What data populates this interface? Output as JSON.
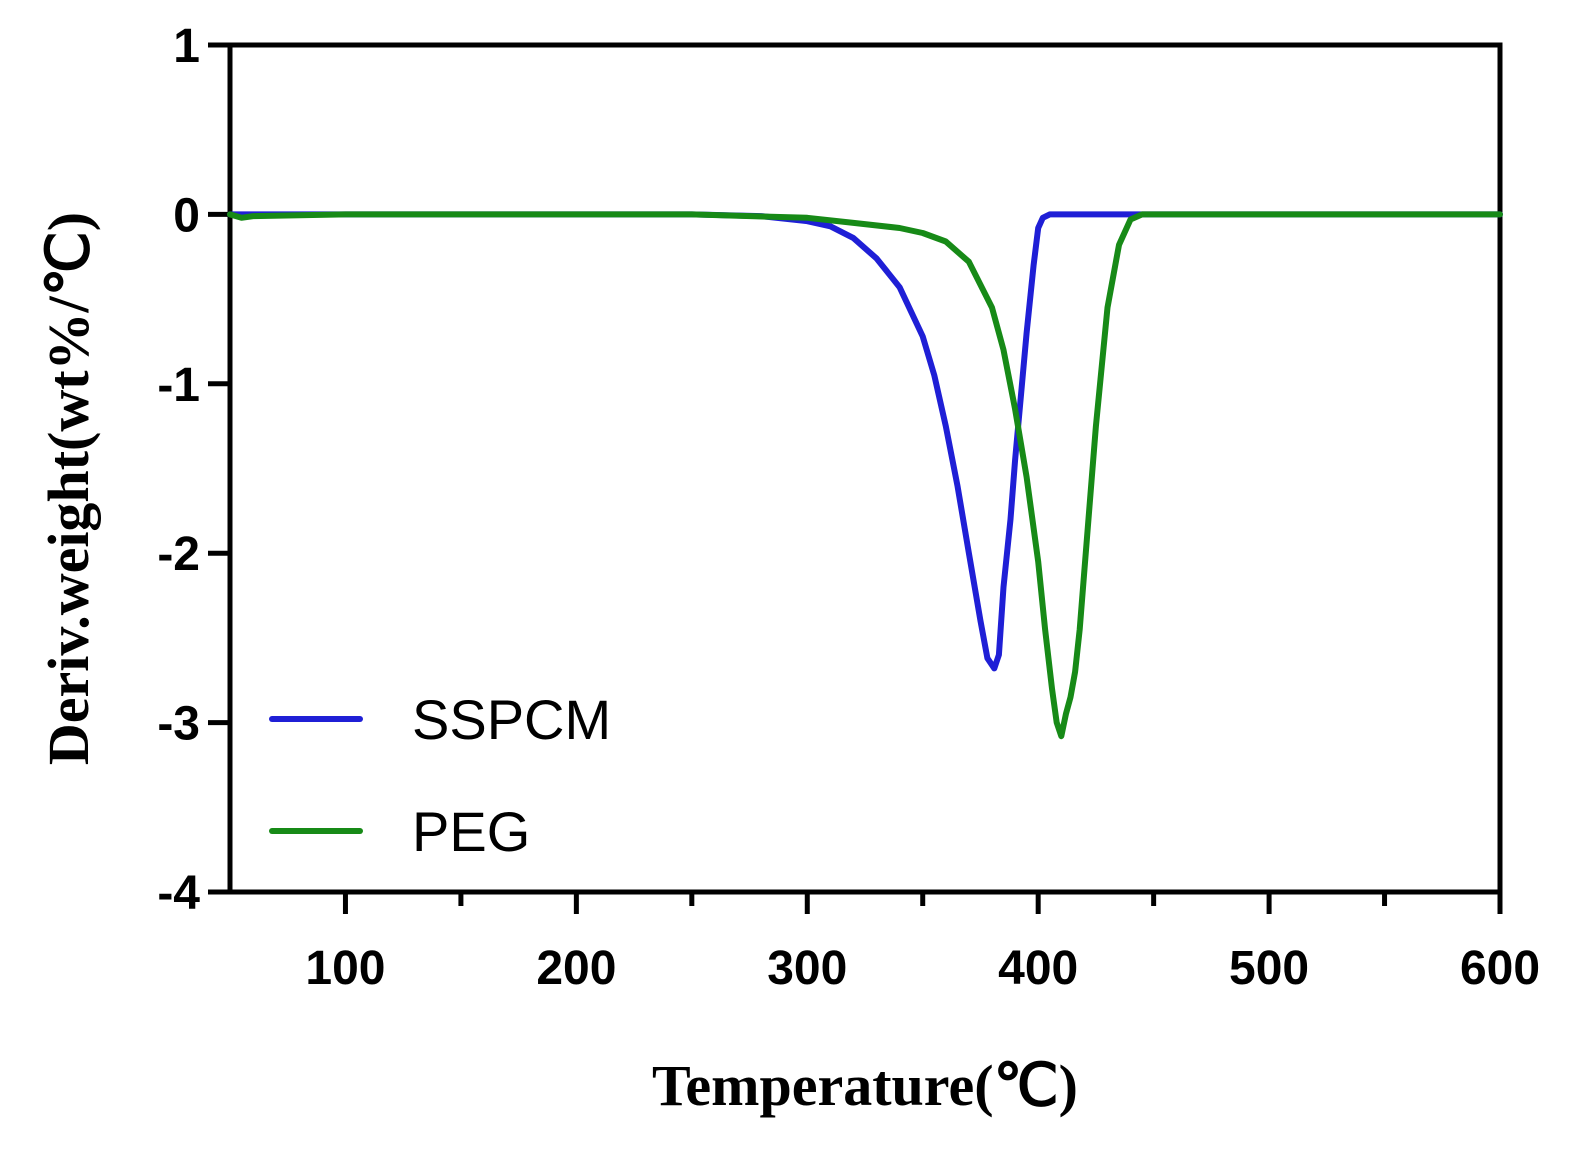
{
  "chart_data": {
    "type": "line",
    "title": "",
    "xlabel": "Temperature(℃)",
    "ylabel": "Deriv.weight(wt%/℃)",
    "xlim": [
      50,
      600
    ],
    "ylim": [
      -4,
      1
    ],
    "xticks": [
      100,
      200,
      300,
      400,
      500,
      600
    ],
    "xticks_minor": [
      150,
      250,
      350,
      450,
      550
    ],
    "yticks": [
      1,
      0,
      -1,
      -2,
      -3,
      -4
    ],
    "grid": false,
    "legend_position": "bottom-left",
    "series": [
      {
        "name": "SSPCM",
        "color": "#1f1fd6",
        "x": [
          50,
          100,
          200,
          250,
          280,
          300,
          310,
          320,
          330,
          340,
          350,
          355,
          360,
          365,
          370,
          375,
          378,
          381,
          383,
          385,
          388,
          390,
          393,
          395,
          398,
          400,
          402,
          405,
          410,
          450,
          500,
          600
        ],
        "y": [
          0,
          0,
          0,
          0,
          -0.01,
          -0.04,
          -0.07,
          -0.14,
          -0.26,
          -0.43,
          -0.72,
          -0.95,
          -1.25,
          -1.6,
          -2.0,
          -2.4,
          -2.62,
          -2.68,
          -2.6,
          -2.2,
          -1.8,
          -1.45,
          -1.0,
          -0.7,
          -0.3,
          -0.08,
          -0.02,
          0,
          0,
          0,
          0,
          0
        ]
      },
      {
        "name": "PEG",
        "color": "#178a17",
        "x": [
          50,
          55,
          60,
          100,
          200,
          250,
          300,
          320,
          340,
          350,
          360,
          370,
          380,
          385,
          390,
          395,
          400,
          403,
          406,
          408,
          410,
          412,
          414,
          416,
          418,
          420,
          425,
          430,
          435,
          440,
          445,
          450,
          500,
          600
        ],
        "y": [
          0,
          -0.02,
          -0.01,
          0,
          0,
          0,
          -0.02,
          -0.05,
          -0.08,
          -0.11,
          -0.16,
          -0.28,
          -0.55,
          -0.8,
          -1.15,
          -1.55,
          -2.05,
          -2.45,
          -2.8,
          -3.0,
          -3.08,
          -2.95,
          -2.85,
          -2.7,
          -2.45,
          -2.1,
          -1.25,
          -0.55,
          -0.18,
          -0.03,
          0,
          0,
          0,
          0
        ]
      }
    ]
  }
}
